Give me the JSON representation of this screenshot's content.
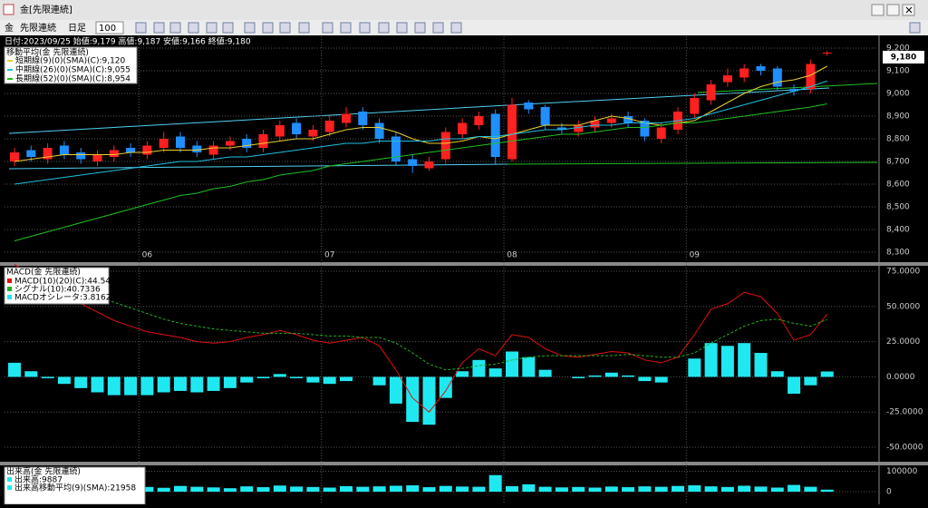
{
  "window": {
    "title": "金[先限連続]"
  },
  "toolbar": {
    "symbol": "金",
    "contract": "先限連続",
    "period": "日足",
    "count": "100"
  },
  "price_chart": {
    "type": "candlestick",
    "info": "日付:2023/09/25 始値:9,179 高値:9,187 安値:9,166 終値:9,180",
    "legend_title": "移動平均(金 先限連続)",
    "legend": [
      "短期線(9)(0)(SMA)(C):9,120",
      "中期線(26)(0)(SMA)(C):9,055",
      "長期線(52)(0)(SMA)(C):8,954"
    ],
    "last_price_label": "9,180",
    "months": [
      null,
      null,
      null,
      null,
      null,
      null,
      null,
      null,
      "06",
      null,
      null,
      null,
      null,
      null,
      null,
      null,
      null,
      null,
      null,
      "07",
      null,
      null,
      null,
      null,
      null,
      null,
      null,
      null,
      null,
      null,
      "08",
      null,
      null,
      null,
      null,
      null,
      null,
      null,
      null,
      null,
      null,
      "09",
      null,
      null,
      null,
      null,
      null,
      null,
      null,
      null
    ],
    "open": [
      8.7,
      8.75,
      8.71,
      8.77,
      8.74,
      8.7,
      8.72,
      8.76,
      8.73,
      8.76,
      8.81,
      8.77,
      8.73,
      8.77,
      8.8,
      8.76,
      8.81,
      8.87,
      8.81,
      8.83,
      8.87,
      8.92,
      8.87,
      8.81,
      8.71,
      8.67,
      8.71,
      8.82,
      8.86,
      8.91,
      8.71,
      8.96,
      8.94,
      8.85,
      8.83,
      8.85,
      8.87,
      8.9,
      8.88,
      8.8,
      8.84,
      8.91,
      8.97,
      9.05,
      9.07,
      9.12,
      9.11,
      9.02,
      9.02,
      9.179
    ],
    "high": [
      8.76,
      8.77,
      8.78,
      8.79,
      8.76,
      8.75,
      8.77,
      8.78,
      8.79,
      8.83,
      8.83,
      8.79,
      8.79,
      8.81,
      8.82,
      8.84,
      8.88,
      8.89,
      8.86,
      8.9,
      8.94,
      8.94,
      8.89,
      8.83,
      8.73,
      8.72,
      8.85,
      8.89,
      8.92,
      8.93,
      8.98,
      8.97,
      8.95,
      8.87,
      8.88,
      8.9,
      8.91,
      8.92,
      8.89,
      8.87,
      8.94,
      9.0,
      9.06,
      9.11,
      9.13,
      9.13,
      9.12,
      9.04,
      9.15,
      9.187
    ],
    "low": [
      8.68,
      8.7,
      8.69,
      8.71,
      8.69,
      8.68,
      8.7,
      8.72,
      8.71,
      8.74,
      8.74,
      8.72,
      8.71,
      8.75,
      8.74,
      8.74,
      8.79,
      8.8,
      8.79,
      8.81,
      8.85,
      8.84,
      8.78,
      8.68,
      8.65,
      8.66,
      8.69,
      8.8,
      8.84,
      8.69,
      8.7,
      8.91,
      8.84,
      8.82,
      8.81,
      8.83,
      8.85,
      8.85,
      8.79,
      8.78,
      8.82,
      8.89,
      8.95,
      9.03,
      9.05,
      9.08,
      9.01,
      8.99,
      9.0,
      9.166
    ],
    "close": [
      8.74,
      8.72,
      8.76,
      8.73,
      8.71,
      8.73,
      8.75,
      8.74,
      8.77,
      8.8,
      8.76,
      8.74,
      8.77,
      8.79,
      8.76,
      8.82,
      8.86,
      8.82,
      8.84,
      8.88,
      8.91,
      8.86,
      8.8,
      8.7,
      8.68,
      8.7,
      8.83,
      8.87,
      8.9,
      8.72,
      8.95,
      8.93,
      8.86,
      8.84,
      8.86,
      8.88,
      8.89,
      8.87,
      8.81,
      8.85,
      8.92,
      8.98,
      9.04,
      9.08,
      9.11,
      9.1,
      9.03,
      9.01,
      9.13,
      9.18
    ],
    "ma_short": [
      8.7,
      8.71,
      8.72,
      8.73,
      8.73,
      8.73,
      8.73,
      8.74,
      8.74,
      8.75,
      8.75,
      8.75,
      8.76,
      8.76,
      8.77,
      8.78,
      8.79,
      8.8,
      8.8,
      8.82,
      8.84,
      8.85,
      8.85,
      8.83,
      8.8,
      8.78,
      8.78,
      8.79,
      8.81,
      8.8,
      8.82,
      8.84,
      8.86,
      8.86,
      8.86,
      8.88,
      8.9,
      8.89,
      8.87,
      8.86,
      8.87,
      8.88,
      8.92,
      8.96,
      9.0,
      9.03,
      9.05,
      9.06,
      9.08,
      9.12
    ],
    "ma_mid": [
      8.6,
      8.61,
      8.62,
      8.63,
      8.64,
      8.65,
      8.66,
      8.67,
      8.68,
      8.69,
      8.7,
      8.7,
      8.71,
      8.72,
      8.72,
      8.73,
      8.74,
      8.75,
      8.76,
      8.77,
      8.78,
      8.78,
      8.79,
      8.79,
      8.79,
      8.79,
      8.8,
      8.8,
      8.81,
      8.81,
      8.82,
      8.83,
      8.84,
      8.84,
      8.85,
      8.86,
      8.86,
      8.87,
      8.87,
      8.87,
      8.88,
      8.89,
      8.91,
      8.93,
      8.95,
      8.97,
      8.99,
      9.01,
      9.03,
      9.055
    ],
    "ma_long": [
      8.35,
      8.37,
      8.39,
      8.41,
      8.43,
      8.45,
      8.47,
      8.49,
      8.51,
      8.53,
      8.55,
      8.56,
      8.58,
      8.59,
      8.61,
      8.62,
      8.64,
      8.65,
      8.66,
      8.68,
      8.69,
      8.7,
      8.71,
      8.72,
      8.73,
      8.74,
      8.75,
      8.76,
      8.77,
      8.78,
      8.79,
      8.8,
      8.81,
      8.82,
      8.82,
      8.83,
      8.84,
      8.85,
      8.85,
      8.86,
      8.87,
      8.87,
      8.88,
      8.89,
      8.9,
      8.91,
      8.92,
      8.93,
      8.94,
      8.954
    ],
    "up_color": "#ff2020",
    "down_color": "#1f8fff",
    "ma_colors": [
      "#e8d030",
      "#20c0e0",
      "#20c020"
    ],
    "ylim": [
      8.26,
      9.252
    ],
    "yticks": [
      {
        "value": 8.3,
        "label": "8,300"
      },
      {
        "value": 8.4,
        "label": "8,400"
      },
      {
        "value": 8.5,
        "label": "8,500"
      },
      {
        "value": 8.6,
        "label": "8,600"
      },
      {
        "value": 8.7,
        "label": "8,700"
      },
      {
        "value": 8.8,
        "label": "8,800"
      },
      {
        "value": 8.9,
        "label": "8,900"
      },
      {
        "value": 9.0,
        "label": "9,000"
      },
      {
        "value": 9.1,
        "label": "9,100"
      },
      {
        "value": 9.2,
        "label": "9,200"
      }
    ]
  },
  "macd_chart": {
    "type": "macd",
    "legend_title": "MACD(金 先限連続)",
    "legend": [
      "MACD(10)(20)(C):44.5498",
      "シグナル(10):40.7336",
      "MACDオシレータ:3.8162"
    ],
    "macd": [
      80,
      72,
      65,
      58,
      52,
      46,
      40,
      36,
      32,
      30,
      28,
      25,
      24,
      25,
      28,
      30,
      33,
      30,
      26,
      24,
      26,
      28,
      22,
      5,
      -15,
      -25,
      -10,
      10,
      20,
      15,
      30,
      28,
      20,
      15,
      14,
      16,
      18,
      17,
      12,
      10,
      14,
      30,
      48,
      52,
      60,
      57,
      45,
      26,
      30,
      44.5498
    ],
    "signal": [
      70,
      68,
      66,
      63,
      60,
      57,
      53,
      49,
      45,
      41,
      38,
      36,
      34,
      33,
      32,
      31,
      31,
      31,
      30,
      29,
      29,
      28,
      28,
      24,
      17,
      9,
      5,
      6,
      8,
      9,
      12,
      14,
      15,
      15,
      15,
      15,
      15,
      16,
      15,
      14,
      14,
      17,
      24,
      30,
      36,
      40,
      41,
      38,
      36,
      40.7336
    ],
    "oscillator": [
      10,
      4,
      -1,
      -5,
      -8,
      -11,
      -13,
      -13,
      -13,
      -11,
      -10,
      -11,
      -10,
      -8,
      -4,
      -1,
      2,
      -1,
      -4,
      -5,
      -3,
      0,
      -6,
      -19,
      -32,
      -34,
      -15,
      4,
      12,
      6,
      18,
      14,
      5,
      0,
      -1,
      1,
      3,
      1,
      -3,
      -4,
      0,
      13,
      24,
      22,
      24,
      17,
      4,
      -12,
      -6,
      3.8162
    ],
    "colors": [
      "#e01010",
      "#20b020",
      "#20e8f0"
    ],
    "ylim": [
      -60.3,
      78.9
    ],
    "yticks": [
      {
        "value": 75,
        "label": "75.0000"
      },
      {
        "value": 50,
        "label": "50.0000"
      },
      {
        "value": 25,
        "label": "25.0000"
      },
      {
        "value": 0,
        "label": "0.0000"
      },
      {
        "value": -25,
        "label": "-25.0000"
      },
      {
        "value": -50,
        "label": "-50.0000"
      }
    ]
  },
  "volume_chart": {
    "type": "bar",
    "legend_title": "出来高(金 先限連続)",
    "legend": [
      "出来高:9887",
      "出来高移動平均(9)(SMA):21958"
    ],
    "values": [
      22000,
      25000,
      18000,
      21000,
      27000,
      24000,
      20000,
      26000,
      23000,
      19000,
      28000,
      24000,
      21000,
      17000,
      26000,
      22000,
      30000,
      25000,
      23000,
      20000,
      27000,
      24000,
      26000,
      29000,
      31000,
      22000,
      28000,
      25000,
      24000,
      81000,
      27000,
      36000,
      24000,
      21000,
      23000,
      20000,
      25000,
      22000,
      26000,
      24000,
      28000,
      31000,
      26000,
      23000,
      29000,
      25000,
      20000,
      33000,
      24000,
      9887
    ],
    "color": "#20e8f0",
    "ylim": [
      -62000,
      128600
    ],
    "yticks": [
      100000,
      0
    ]
  }
}
